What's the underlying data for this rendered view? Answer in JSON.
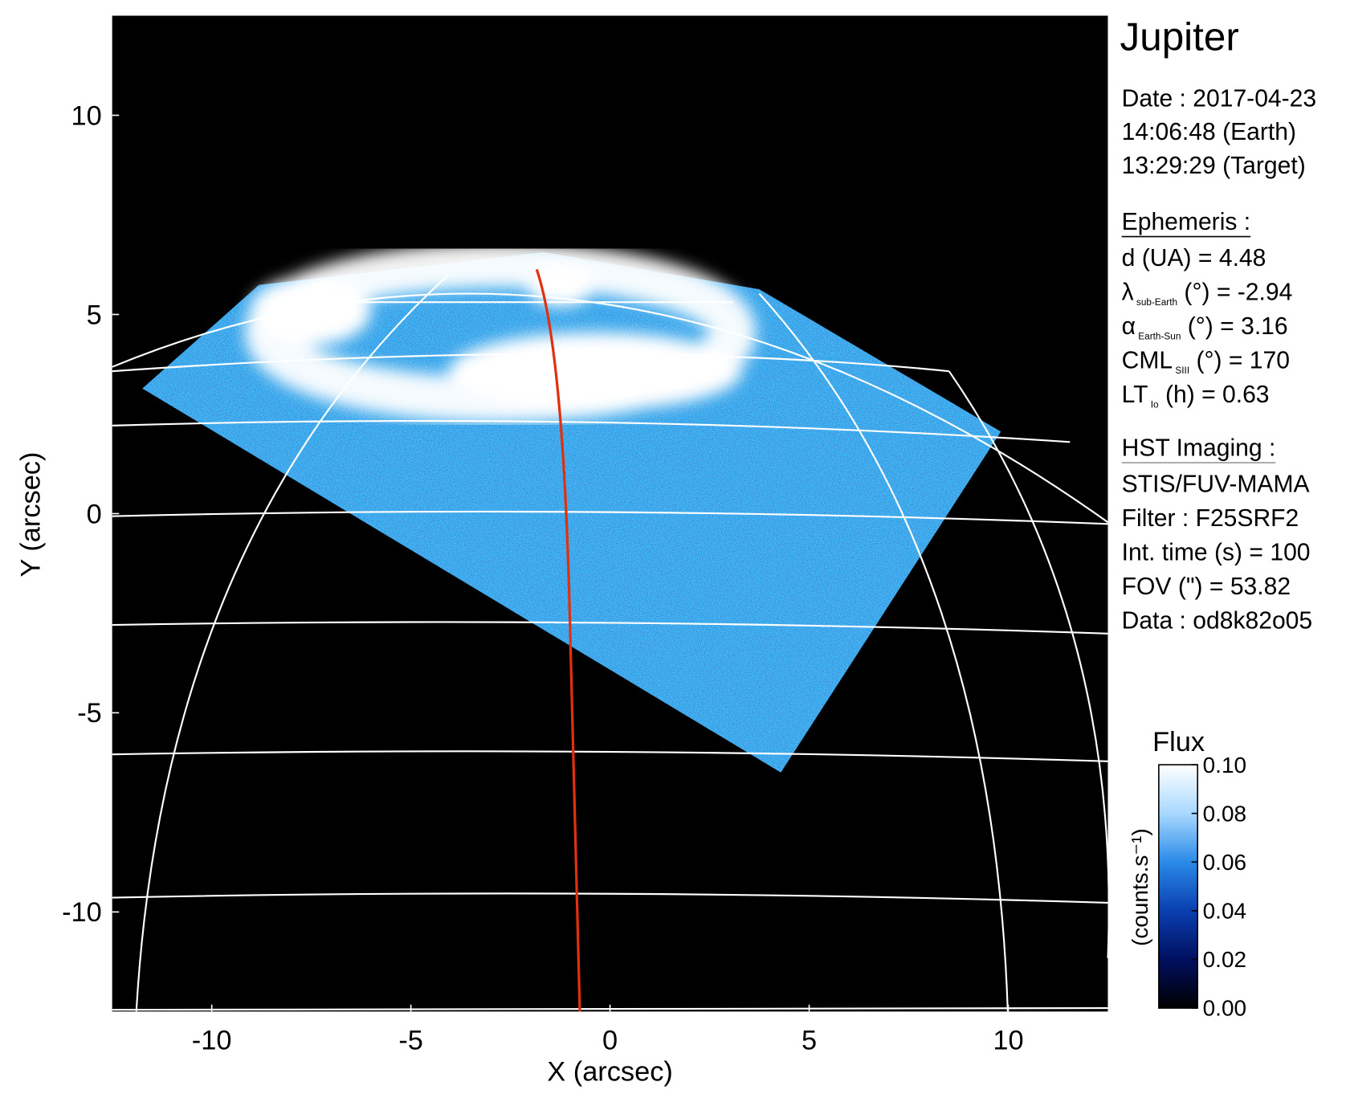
{
  "chart_data": {
    "type": "image",
    "title": "Jupiter",
    "xlabel": "X (arcsec)",
    "ylabel": "Y (arcsec)",
    "xlim": [
      -12.5,
      12.5
    ],
    "ylim": [
      -12.5,
      12.5
    ],
    "xticks": [
      -10,
      -5,
      0,
      5,
      10
    ],
    "yticks": [
      -10,
      -5,
      0,
      5,
      10
    ],
    "date_lines": [
      "Date : 2017-04-23",
      "14:06:48 (Earth)",
      "13:29:29 (Target)"
    ],
    "ephemeris_title": "Ephemeris :",
    "ephemeris": [
      {
        "main": "d (UA)    = 4.48"
      },
      {
        "main": "λ",
        "sub": "sub-Earth",
        "rest": " (°) = -2.94"
      },
      {
        "main": "α",
        "sub": "Earth-Sun",
        "rest": " (°) = 3.16"
      },
      {
        "main": "CML",
        "sub": "SIII",
        "rest": " (°) = 170"
      },
      {
        "main": "LT",
        "sub": "Io",
        "rest": " (h) = 0.63"
      }
    ],
    "instrument_title": "HST Imaging :",
    "instrument": [
      "STIS/FUV-MAMA",
      "Filter : F25SRF2",
      "Int. time (s) = 100",
      "FOV (\") = 53.82",
      "Data : od8k82o05"
    ],
    "colorbar": {
      "title": "Flux",
      "label": "(counts.s⁻¹)",
      "clim": [
        0,
        0.1
      ],
      "ticks": [
        {
          "value": 0,
          "label": "0.00"
        },
        {
          "value": 0.02,
          "label": "0.02"
        },
        {
          "value": 0.04,
          "label": "0.04"
        },
        {
          "value": 0.06,
          "label": "0.06"
        },
        {
          "value": 0.08,
          "label": "0.08"
        },
        {
          "value": 0.1,
          "label": "0.10"
        }
      ],
      "colormap": [
        "#000000",
        "#001060",
        "#0a3fb0",
        "#2a8ae8",
        "#a8d8ff",
        "#ffffff"
      ]
    }
  }
}
